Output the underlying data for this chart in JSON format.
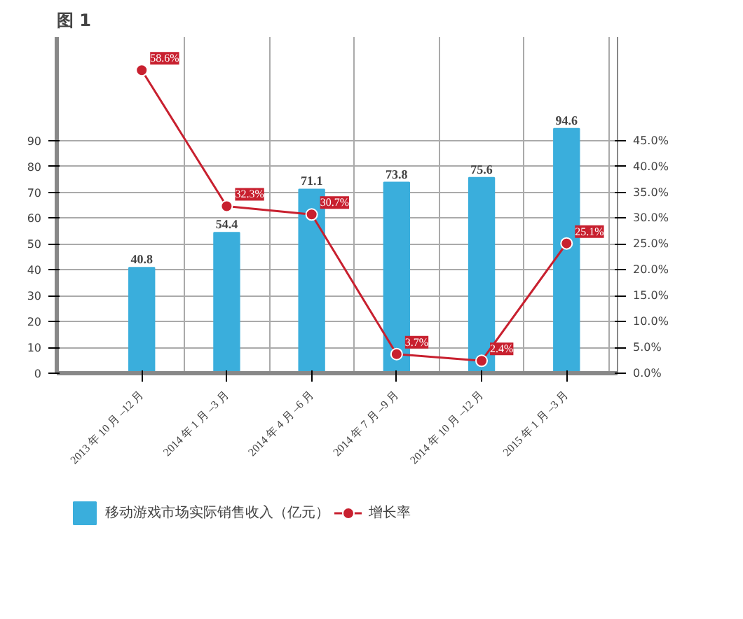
{
  "chart_data": {
    "type": "bar",
    "title": "图 1",
    "categories": [
      "2013 年 10 月 –12 月",
      "2014 年 1 月 –3 月",
      "2014 年 4 月 –6 月",
      "2014 年 7 月 –9 月",
      "2014 年 10 月 –12 月",
      "2015 年 1 月 –3 月"
    ],
    "series": [
      {
        "name": "移动游戏市场实际销售收入（亿元）",
        "color": "#3aaedc",
        "values": [
          40.8,
          54.4,
          71.1,
          73.8,
          75.6,
          94.6
        ],
        "value_labels": [
          "40.8",
          "54.4",
          "71.1",
          "73.8",
          "75.6",
          "94.6"
        ]
      },
      {
        "name": "增长率",
        "type": "line",
        "axis": "y2",
        "color": "#c8202f",
        "marker": "circle",
        "values": [
          58.6,
          32.3,
          30.7,
          3.7,
          2.4,
          25.1
        ],
        "value_labels": [
          "58.6%",
          "32.3%",
          "30.7%",
          "3.7%",
          "2.4%",
          "25.1%"
        ]
      }
    ],
    "ylim": [
      0,
      130
    ],
    "yticks": [
      0,
      10,
      20,
      30,
      40,
      50,
      60,
      70,
      80,
      90
    ],
    "y2lim": [
      0,
      65
    ],
    "y2ticks": [
      {
        "value": 0,
        "label": "0.0%"
      },
      {
        "value": 5,
        "label": "5.0%"
      },
      {
        "value": 10,
        "label": "10.0%"
      },
      {
        "value": 15,
        "label": "15.0%"
      },
      {
        "value": 20,
        "label": "20.0%"
      },
      {
        "value": 25,
        "label": "25.0%"
      },
      {
        "value": 30,
        "label": "30.0%"
      },
      {
        "value": 35,
        "label": "35.0%"
      },
      {
        "value": 40,
        "label": "40.0%"
      },
      {
        "value": 45,
        "label": "45.0%"
      }
    ],
    "grid": true,
    "legend": "bottom"
  }
}
